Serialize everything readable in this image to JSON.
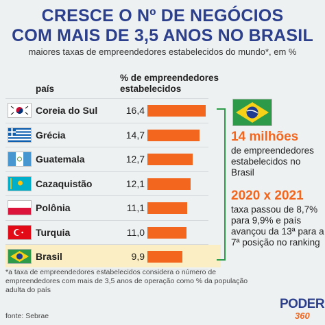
{
  "title_line1": "CRESCE O Nº DE NEGÓCIOS",
  "title_line2": "COM MAIS DE 3,5 ANOS NO BRASIL",
  "subtitle": "maiores taxas de empreendedores estabelecidos do mundo*, em %",
  "col_country": "país",
  "col_pct_line1": "% de empreendedores",
  "col_pct_line2": "estabelecidos",
  "colors": {
    "bar": "#f2661e",
    "title": "#2b3f8c",
    "highlight": "#fbeec5",
    "accent_line": "#2d9a4a"
  },
  "chart_data": {
    "type": "bar",
    "orientation": "horizontal",
    "categories": [
      "Coreia do Sul",
      "Grécia",
      "Guatemala",
      "Cazaquistão",
      "Polônia",
      "Turquia",
      "Brasil"
    ],
    "values": [
      16.4,
      14.7,
      12.7,
      12.1,
      11.1,
      11.0,
      9.9
    ],
    "value_labels": [
      "16,4",
      "14,7",
      "12,7",
      "12,1",
      "11,1",
      "11,0",
      "9,9"
    ],
    "flags": [
      "korea-flag",
      "greece-flag",
      "guatemala-flag",
      "kazakhstan-flag",
      "poland-flag",
      "turkey-flag",
      "brazil-flag"
    ],
    "highlight": "Brasil",
    "title": "CRESCE O Nº DE NEGÓCIOS COM MAIS DE 3,5 ANOS NO BRASIL",
    "xlim": [
      0,
      16.4
    ]
  },
  "side": {
    "stat1": "14 milhões",
    "stat1_text": "de empreendedores estabelecidos no Brasil",
    "stat2": "2020 x 2021",
    "stat2_text": "taxa passou de 8,7% para 9,9% e país avançou da 13ª para a 7ª posição no ranking"
  },
  "footnote": "*a taxa de empreendedores estabelecidos considera o número de empreendedores com mais de 3,5 anos de operação como % da população adulta do país",
  "source": "fonte: Sebrae",
  "logo": {
    "word": "PODER",
    "number": "360"
  }
}
